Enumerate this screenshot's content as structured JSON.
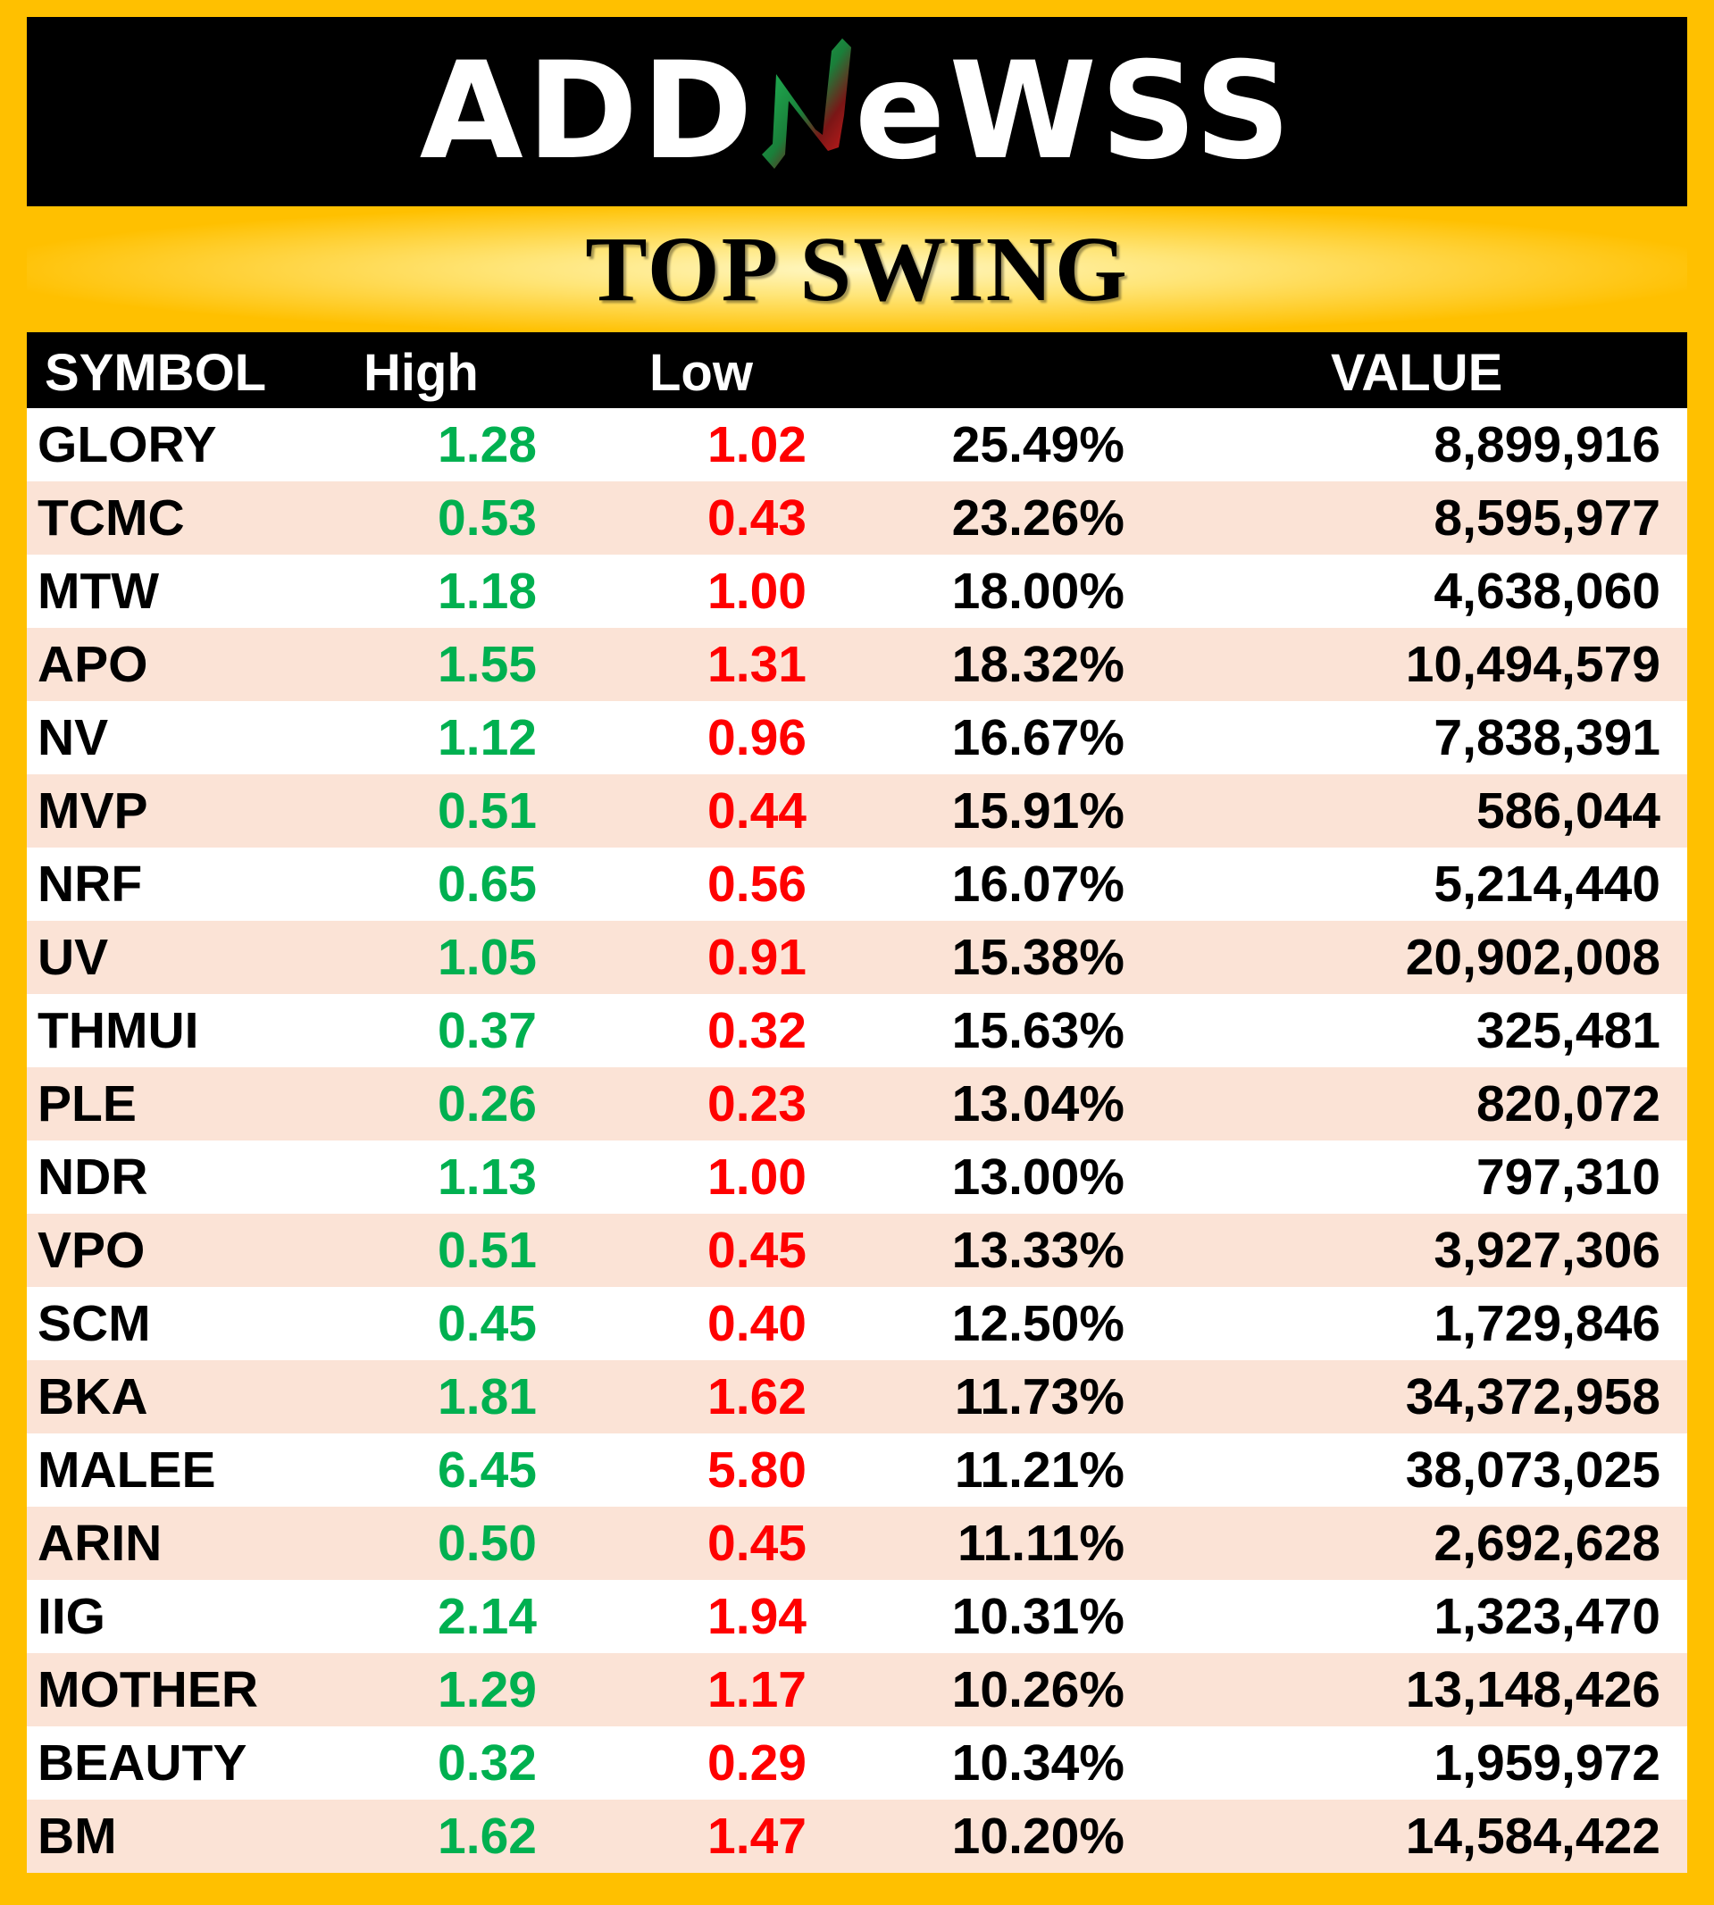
{
  "logo": {
    "text_left": "ADD",
    "text_right": "eWSS",
    "mark": "N"
  },
  "title": "TOP SWING",
  "columns": {
    "symbol": "SYMBOL",
    "high": "High",
    "low": "Low",
    "pct": "",
    "value": "VALUE"
  },
  "colors": {
    "background": "#FFC000",
    "banner": "#000000",
    "high": "#00B050",
    "low": "#FF0000",
    "row_alt": "#FBE3D6"
  },
  "rows": [
    {
      "symbol": "GLORY",
      "high": "1.28",
      "low": "1.02",
      "pct": "25.49%",
      "value": "8,899,916"
    },
    {
      "symbol": "TCMC",
      "high": "0.53",
      "low": "0.43",
      "pct": "23.26%",
      "value": "8,595,977"
    },
    {
      "symbol": "MTW",
      "high": "1.18",
      "low": "1.00",
      "pct": "18.00%",
      "value": "4,638,060"
    },
    {
      "symbol": "APO",
      "high": "1.55",
      "low": "1.31",
      "pct": "18.32%",
      "value": "10,494,579"
    },
    {
      "symbol": "NV",
      "high": "1.12",
      "low": "0.96",
      "pct": "16.67%",
      "value": "7,838,391"
    },
    {
      "symbol": "MVP",
      "high": "0.51",
      "low": "0.44",
      "pct": "15.91%",
      "value": "586,044"
    },
    {
      "symbol": "NRF",
      "high": "0.65",
      "low": "0.56",
      "pct": "16.07%",
      "value": "5,214,440"
    },
    {
      "symbol": "UV",
      "high": "1.05",
      "low": "0.91",
      "pct": "15.38%",
      "value": "20,902,008"
    },
    {
      "symbol": "THMUI",
      "high": "0.37",
      "low": "0.32",
      "pct": "15.63%",
      "value": "325,481"
    },
    {
      "symbol": "PLE",
      "high": "0.26",
      "low": "0.23",
      "pct": "13.04%",
      "value": "820,072"
    },
    {
      "symbol": "NDR",
      "high": "1.13",
      "low": "1.00",
      "pct": "13.00%",
      "value": "797,310"
    },
    {
      "symbol": "VPO",
      "high": "0.51",
      "low": "0.45",
      "pct": "13.33%",
      "value": "3,927,306"
    },
    {
      "symbol": "SCM",
      "high": "0.45",
      "low": "0.40",
      "pct": "12.50%",
      "value": "1,729,846"
    },
    {
      "symbol": "BKA",
      "high": "1.81",
      "low": "1.62",
      "pct": "11.73%",
      "value": "34,372,958"
    },
    {
      "symbol": "MALEE",
      "high": "6.45",
      "low": "5.80",
      "pct": "11.21%",
      "value": "38,073,025"
    },
    {
      "symbol": "ARIN",
      "high": "0.50",
      "low": "0.45",
      "pct": "11.11%",
      "value": "2,692,628"
    },
    {
      "symbol": "IIG",
      "high": "2.14",
      "low": "1.94",
      "pct": "10.31%",
      "value": "1,323,470"
    },
    {
      "symbol": "MOTHER",
      "high": "1.29",
      "low": "1.17",
      "pct": "10.26%",
      "value": "13,148,426"
    },
    {
      "symbol": "BEAUTY",
      "high": "0.32",
      "low": "0.29",
      "pct": "10.34%",
      "value": "1,959,972"
    },
    {
      "symbol": "BM",
      "high": "1.62",
      "low": "1.47",
      "pct": "10.20%",
      "value": "14,584,422"
    }
  ]
}
